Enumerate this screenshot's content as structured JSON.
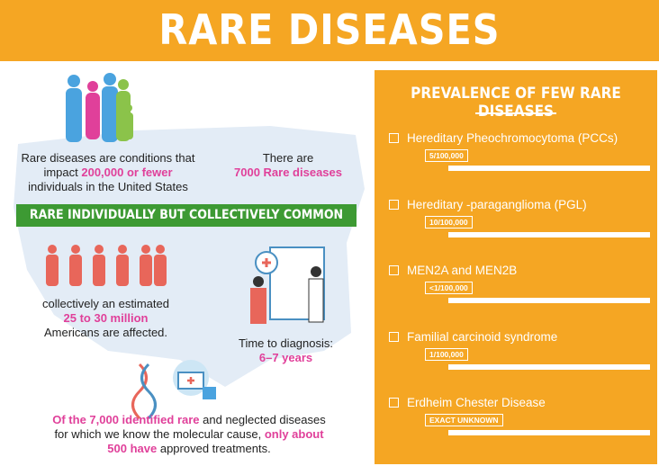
{
  "header": {
    "title": "RARE DISEASES"
  },
  "left": {
    "definition": [
      "Rare diseases are conditions that impact ",
      "200,000 or fewer",
      " individuals in the United States"
    ],
    "count": [
      "There are",
      "7000 Rare diseases"
    ],
    "banner": "RARE INDIVIDUALLY BUT COLLECTIVELY COMMON",
    "affected": [
      "collectively an estimated",
      "25 to 30 million",
      "Americans are affected."
    ],
    "diagnosis": [
      "Time to diagnosis:",
      "6–7 years"
    ],
    "treatments": [
      "Of the 7,000 identified rare",
      " and neglected diseases for which we know the molecular cause, ",
      "only about 500 have",
      " approved treatments."
    ]
  },
  "panel": {
    "title": "PREVALENCE OF FEW RARE DISEASES",
    "items": [
      {
        "name": "Hereditary Pheochromocytoma (PCCs)",
        "prevalence": "5/100,000"
      },
      {
        "name": "Hereditary -paraganglioma (PGL)",
        "prevalence": "10/100,000"
      },
      {
        "name": "MEN2A and MEN2B",
        "prevalence": "<1/100,000"
      },
      {
        "name": "Familial carcinoid syndrome",
        "prevalence": "1/100,000"
      },
      {
        "name": "Erdheim Chester Disease",
        "prevalence": "EXACT UNKNOWN"
      }
    ]
  }
}
